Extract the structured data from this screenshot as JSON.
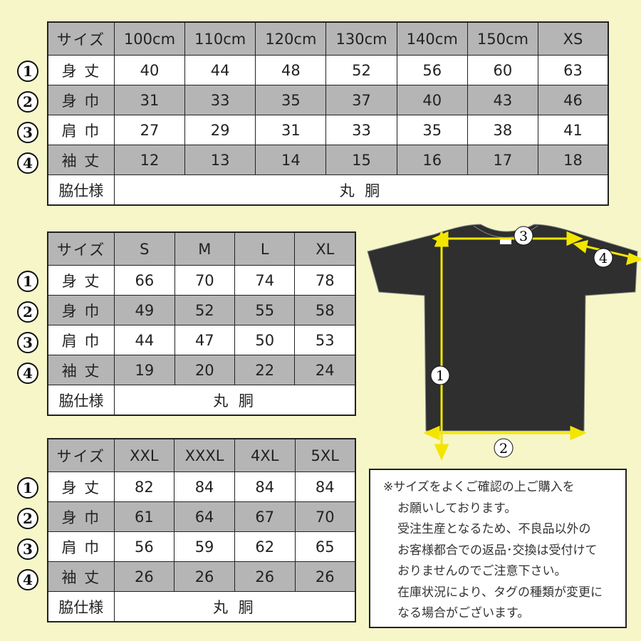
{
  "tables": [
    {
      "header": [
        "サイズ",
        "100cm",
        "110cm",
        "120cm",
        "130cm",
        "140cm",
        "150cm",
        "XS"
      ],
      "rows": [
        {
          "marker": "1",
          "label": "身 丈",
          "values": [
            "40",
            "44",
            "48",
            "52",
            "56",
            "60",
            "63"
          ]
        },
        {
          "marker": "2",
          "label": "身 巾",
          "values": [
            "31",
            "33",
            "35",
            "37",
            "40",
            "43",
            "46"
          ]
        },
        {
          "marker": "3",
          "label": "肩 巾",
          "values": [
            "27",
            "29",
            "31",
            "33",
            "35",
            "38",
            "41"
          ]
        },
        {
          "marker": "4",
          "label": "袖 丈",
          "values": [
            "12",
            "13",
            "14",
            "15",
            "16",
            "17",
            "18"
          ]
        }
      ],
      "side_label": "脇仕様",
      "side_value": "丸 胴"
    },
    {
      "header": [
        "サイズ",
        "S",
        "M",
        "L",
        "XL"
      ],
      "rows": [
        {
          "marker": "1",
          "label": "身 丈",
          "values": [
            "66",
            "70",
            "74",
            "78"
          ]
        },
        {
          "marker": "2",
          "label": "身 巾",
          "values": [
            "49",
            "52",
            "55",
            "58"
          ]
        },
        {
          "marker": "3",
          "label": "肩 巾",
          "values": [
            "44",
            "47",
            "50",
            "53"
          ]
        },
        {
          "marker": "4",
          "label": "袖 丈",
          "values": [
            "19",
            "20",
            "22",
            "24"
          ]
        }
      ],
      "side_label": "脇仕様",
      "side_value": "丸 胴"
    },
    {
      "header": [
        "サイズ",
        "XXL",
        "XXXL",
        "4XL",
        "5XL"
      ],
      "rows": [
        {
          "marker": "1",
          "label": "身 丈",
          "values": [
            "82",
            "84",
            "84",
            "84"
          ]
        },
        {
          "marker": "2",
          "label": "身 巾",
          "values": [
            "61",
            "64",
            "67",
            "70"
          ]
        },
        {
          "marker": "3",
          "label": "肩 巾",
          "values": [
            "56",
            "59",
            "62",
            "65"
          ]
        },
        {
          "marker": "4",
          "label": "袖 丈",
          "values": [
            "26",
            "26",
            "26",
            "26"
          ]
        }
      ],
      "side_label": "脇仕様",
      "side_value": "丸 胴"
    }
  ],
  "diagram": {
    "markers": [
      "1",
      "2",
      "3",
      "4"
    ],
    "shirt_color": "#2e2f2e",
    "arrow_color": "#f2e600"
  },
  "note": {
    "lines": [
      "※サイズをよくご確認の上ご購入を",
      "お願いしております。",
      "受注生産となるため、不良品以外の",
      "お客様都合での返品･交換は受付けて",
      "おりませんのでご注意下さい。",
      "在庫状況により、タグの種類が変更に",
      "なる場合がございます。"
    ]
  },
  "colors": {
    "background": "#f6f6c9",
    "header_gray": "#b5b5b5"
  }
}
